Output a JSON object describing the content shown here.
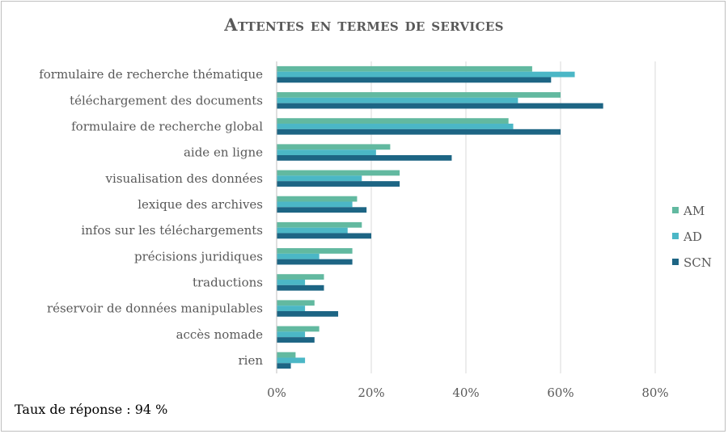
{
  "title": "Attentes en termes de services",
  "footnote": "Taux de réponse : 94 %",
  "colors": {
    "AM": "#62b9a0",
    "AD": "#4bb7c6",
    "SCN": "#1d6584",
    "grid": "#d9d9d9",
    "axis": "#bfbfbf"
  },
  "chart_data": {
    "type": "bar",
    "orientation": "horizontal",
    "title": "Attentes en termes de services",
    "categories": [
      "formulaire de recherche thématique",
      "téléchargement des documents",
      "formulaire de recherche global",
      "aide en ligne",
      "visualisation des données",
      "lexique des archives",
      "infos sur les téléchargements",
      "précisions juridiques",
      "traductions",
      "réservoir de données manipulables",
      "accès nomade",
      "rien"
    ],
    "series": [
      {
        "name": "AM",
        "values": [
          54,
          60,
          49,
          24,
          26,
          17,
          18,
          16,
          10,
          8,
          9,
          4
        ]
      },
      {
        "name": "AD",
        "values": [
          63,
          51,
          50,
          21,
          18,
          16,
          15,
          9,
          6,
          6,
          6,
          6
        ]
      },
      {
        "name": "SCN",
        "values": [
          58,
          69,
          60,
          37,
          26,
          19,
          20,
          16,
          10,
          13,
          8,
          3
        ]
      }
    ],
    "xlim": [
      0,
      80
    ],
    "xticks": [
      "0%",
      "20%",
      "40%",
      "60%",
      "80%"
    ],
    "xtick_values": [
      0,
      20,
      40,
      60,
      80
    ],
    "grid": true,
    "legend": "right"
  }
}
